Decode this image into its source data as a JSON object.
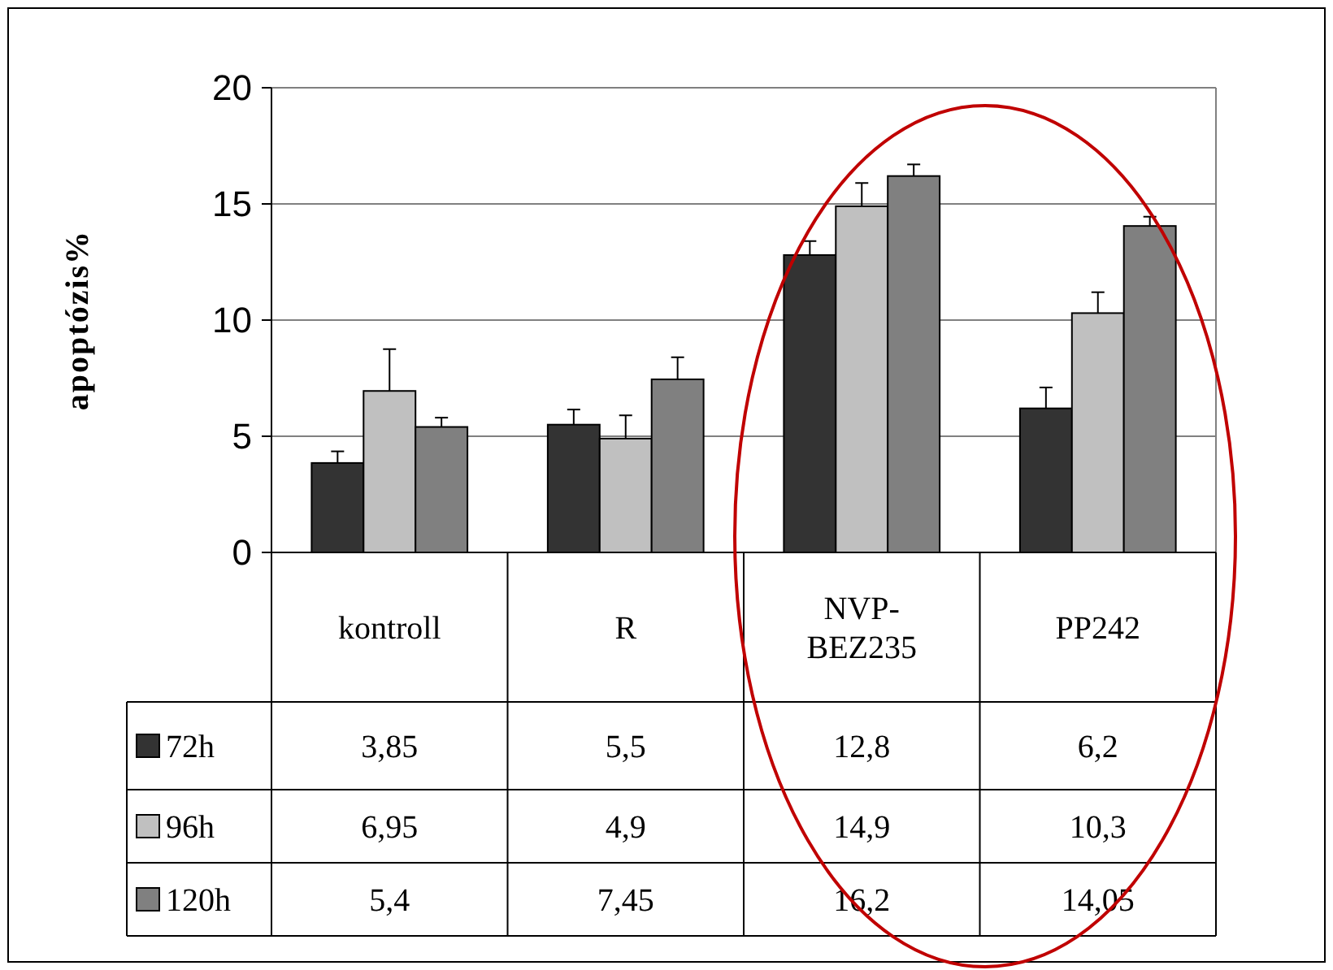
{
  "chart_data": {
    "type": "bar",
    "ylabel": "apoptózis%",
    "categories": [
      "kontroll",
      "R",
      "NVP-BEZ235",
      "PP242"
    ],
    "series": [
      {
        "name": "72h",
        "color": "#333333",
        "values": [
          3.85,
          5.5,
          12.8,
          6.2
        ],
        "value_labels": [
          "3,85",
          "5,5",
          "12,8",
          "6,2"
        ],
        "errors": [
          [
            3.85,
            4.35
          ],
          [
            5.5,
            6.15
          ],
          [
            12.8,
            13.4
          ],
          [
            6.2,
            7.1
          ]
        ]
      },
      {
        "name": "96h",
        "color": "#c0c0c0",
        "values": [
          6.95,
          4.9,
          14.9,
          10.3
        ],
        "value_labels": [
          "6,95",
          "4,9",
          "14,9",
          "10,3"
        ],
        "errors": [
          [
            6.95,
            8.75
          ],
          [
            4.9,
            5.9
          ],
          [
            14.9,
            15.9
          ],
          [
            10.3,
            11.2
          ]
        ]
      },
      {
        "name": "120h",
        "color": "#808080",
        "values": [
          5.4,
          7.45,
          16.2,
          14.05
        ],
        "value_labels": [
          "5,4",
          "7,45",
          "16,2",
          "14,05"
        ],
        "errors": [
          [
            5.4,
            5.8
          ],
          [
            7.45,
            8.4
          ],
          [
            16.2,
            16.7
          ],
          [
            14.05,
            14.45
          ]
        ]
      }
    ],
    "ylim": [
      0,
      20
    ],
    "yticks": [
      0,
      5,
      10,
      15,
      20
    ],
    "grid": "y",
    "legend": "bottom"
  }
}
